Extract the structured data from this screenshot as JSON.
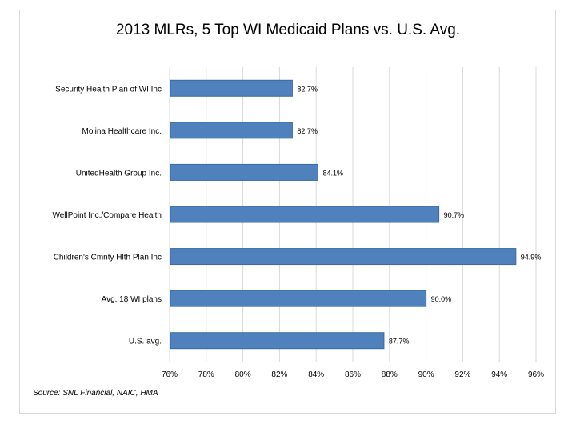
{
  "chart_data": {
    "type": "bar",
    "orientation": "horizontal",
    "title": "2013 MLRs, 5 Top WI Medicaid Plans vs. U.S. Avg.",
    "categories": [
      "Security Health Plan of WI Inc",
      "Molina Healthcare Inc.",
      "UnitedHealth Group Inc.",
      "WellPoint Inc./Compare Health",
      "Children's Cmnty Hlth Plan Inc",
      "Avg. 18 WI plans",
      "U.S. avg."
    ],
    "values": [
      82.7,
      82.7,
      84.1,
      90.7,
      94.9,
      90.0,
      87.7
    ],
    "data_labels": [
      "82.7%",
      "82.7%",
      "84.1%",
      "90.7%",
      "94.9%",
      "90.0%",
      "87.7%"
    ],
    "xlim": [
      76,
      96
    ],
    "x_ticks": [
      76,
      78,
      80,
      82,
      84,
      86,
      88,
      90,
      92,
      94,
      96
    ],
    "x_tick_labels": [
      "76%",
      "78%",
      "80%",
      "82%",
      "84%",
      "86%",
      "88%",
      "90%",
      "92%",
      "94%",
      "96%"
    ],
    "xlabel": "",
    "ylabel": "",
    "grid": true,
    "legend": "none",
    "colors": {
      "bar": "#4f81bd",
      "bar_edge": "#3a6aa5",
      "grid": "#d9d9d9"
    }
  },
  "source_note": "Source: SNL Financial, NAIC, HMA"
}
